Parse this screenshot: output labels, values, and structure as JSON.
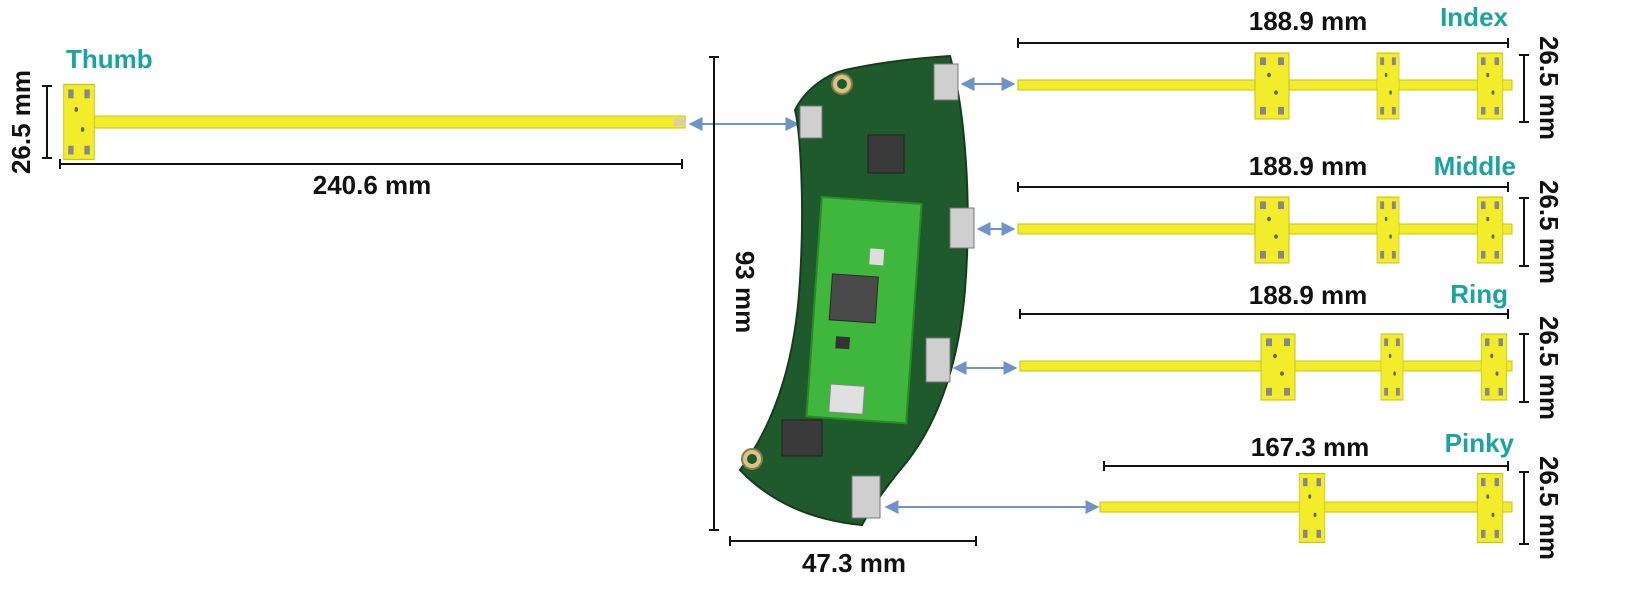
{
  "labels": {
    "thumb": "Thumb",
    "index": "Index",
    "middle": "Middle",
    "ring": "Ring",
    "pinky": "Pinky"
  },
  "dimensions": {
    "thumb_length": "240.6 mm",
    "thumb_width": "26.5 mm",
    "index_length": "188.9 mm",
    "index_width": "26.5 mm",
    "middle_length": "188.9 mm",
    "middle_width": "26.5 mm",
    "ring_length": "188.9 mm",
    "ring_width": "26.5 mm",
    "pinky_length": "167.3 mm",
    "pinky_width": "26.5 mm",
    "board_height": "93 mm",
    "board_width": "47.3 mm"
  },
  "colors": {
    "finger_label": "#1aa3a0",
    "flex_pcb": "#f2ec2a",
    "main_pcb": "#1f5a2c",
    "mcu_board": "#3fb63c",
    "arrow": "#6f93c8",
    "dimension_line": "#111111"
  }
}
